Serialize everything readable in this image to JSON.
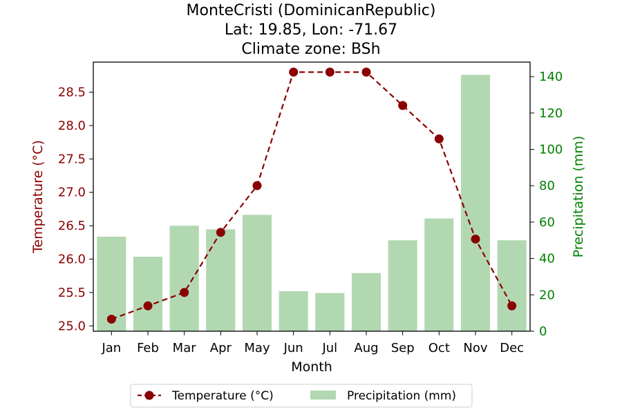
{
  "chart_data": {
    "type": "bar+line",
    "title_lines": [
      "MonteCristi (DominicanRepublic)",
      "Lat: 19.85, Lon: -71.67",
      "Climate zone: BSh"
    ],
    "xlabel": "Month",
    "categories": [
      "Jan",
      "Feb",
      "Mar",
      "Apr",
      "May",
      "Jun",
      "Jul",
      "Aug",
      "Sep",
      "Oct",
      "Nov",
      "Dec"
    ],
    "temperature": {
      "name": "Temperature (°C)",
      "axis_label": "Temperature (°C)",
      "color": "#8b0000",
      "values": [
        25.1,
        25.3,
        25.5,
        26.4,
        27.1,
        28.8,
        28.8,
        28.8,
        28.3,
        27.8,
        26.3,
        25.3
      ],
      "ylim": [
        24.92,
        28.95
      ],
      "ticks": [
        "25.0",
        "25.5",
        "26.0",
        "26.5",
        "27.0",
        "27.5",
        "28.0",
        "28.5"
      ]
    },
    "precipitation": {
      "name": "Precipitation (mm)",
      "axis_label": "Precipitation (mm)",
      "color": "#008000",
      "bar_color": "#b2d8b2",
      "values": [
        52,
        41,
        58,
        56,
        64,
        22,
        21,
        32,
        50,
        62,
        141,
        50
      ],
      "ylim": [
        0,
        148
      ],
      "ticks": [
        "0",
        "20",
        "40",
        "60",
        "80",
        "100",
        "120",
        "140"
      ]
    },
    "legend": {
      "placement": "bottom-center",
      "items": [
        "Temperature (°C)",
        "Precipitation (mm)"
      ]
    }
  }
}
